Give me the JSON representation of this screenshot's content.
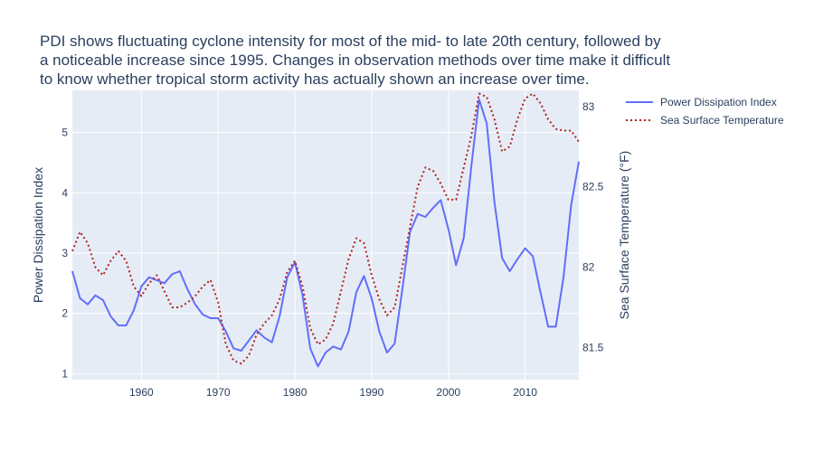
{
  "chart_data": {
    "type": "line",
    "title_lines": [
      "PDI shows fluctuating cyclone intensity for most of the mid- to late 20th century, followed by",
      "a noticeable increase since 1995. Changes in observation methods over time make it difficult",
      "to know whether tropical storm activity has actually shown an increase over time."
    ],
    "xlabel": "",
    "y_left_label": "Power Dissipation Index",
    "y_right_label": "Sea Surface Temperature (°F)",
    "xlim": [
      1951,
      2017
    ],
    "x_ticks": [
      1960,
      1970,
      1980,
      1990,
      2000,
      2010
    ],
    "y_left_lim": [
      0.9,
      5.7
    ],
    "y_left_ticks": [
      1,
      2,
      3,
      4,
      5
    ],
    "y_right_lim": [
      81.3,
      83.1
    ],
    "y_right_ticks": [
      81.5,
      82,
      82.5,
      83
    ],
    "grid": true,
    "legend_position": "top-right, outside plot",
    "background_color": "#e5ecf6",
    "series": [
      {
        "name": "Power Dissipation Index",
        "axis": "left",
        "color": "#636efa",
        "dash": "solid",
        "x": [
          1951,
          1952,
          1953,
          1954,
          1955,
          1956,
          1957,
          1958,
          1959,
          1960,
          1961,
          1962,
          1963,
          1964,
          1965,
          1966,
          1967,
          1968,
          1969,
          1970,
          1971,
          1972,
          1973,
          1974,
          1975,
          1976,
          1977,
          1978,
          1979,
          1980,
          1981,
          1982,
          1983,
          1984,
          1985,
          1986,
          1987,
          1988,
          1989,
          1990,
          1991,
          1992,
          1993,
          1994,
          1995,
          1996,
          1997,
          1998,
          1999,
          2000,
          2001,
          2002,
          2003,
          2004,
          2005,
          2006,
          2007,
          2008,
          2009,
          2010,
          2011,
          2012,
          2013,
          2014,
          2015,
          2016,
          2017
        ],
        "values": [
          2.7,
          2.25,
          2.15,
          2.3,
          2.22,
          1.95,
          1.8,
          1.8,
          2.05,
          2.45,
          2.6,
          2.55,
          2.5,
          2.65,
          2.7,
          2.4,
          2.15,
          1.98,
          1.92,
          1.92,
          1.7,
          1.42,
          1.38,
          1.55,
          1.72,
          1.6,
          1.52,
          1.95,
          2.6,
          2.85,
          2.3,
          1.42,
          1.12,
          1.35,
          1.45,
          1.4,
          1.7,
          2.35,
          2.62,
          2.25,
          1.7,
          1.35,
          1.5,
          2.4,
          3.35,
          3.65,
          3.6,
          3.75,
          3.88,
          3.4,
          2.8,
          3.25,
          4.45,
          5.55,
          5.15,
          3.85,
          2.92,
          2.7,
          2.9,
          3.08,
          2.95,
          2.35,
          1.78,
          1.78,
          2.6,
          3.8,
          4.52
        ]
      },
      {
        "name": "Sea Surface Temperature",
        "axis": "right",
        "color": "#b22222",
        "dash": "dot",
        "x": [
          1951,
          1952,
          1953,
          1954,
          1955,
          1956,
          1957,
          1958,
          1959,
          1960,
          1961,
          1962,
          1963,
          1964,
          1965,
          1966,
          1967,
          1968,
          1969,
          1970,
          1971,
          1972,
          1973,
          1974,
          1975,
          1976,
          1977,
          1978,
          1979,
          1980,
          1981,
          1982,
          1983,
          1984,
          1985,
          1986,
          1987,
          1988,
          1989,
          1990,
          1991,
          1992,
          1993,
          1994,
          1995,
          1996,
          1997,
          1998,
          1999,
          2000,
          2001,
          2002,
          2003,
          2004,
          2005,
          2006,
          2007,
          2008,
          2009,
          2010,
          2011,
          2012,
          2013,
          2014,
          2015,
          2016,
          2017
        ],
        "values": [
          82.1,
          82.22,
          82.15,
          82.0,
          81.95,
          82.04,
          82.1,
          82.04,
          81.88,
          81.82,
          81.9,
          81.95,
          81.85,
          81.75,
          81.75,
          81.78,
          81.82,
          81.88,
          81.92,
          81.78,
          81.52,
          81.42,
          81.4,
          81.45,
          81.58,
          81.65,
          81.7,
          81.8,
          81.97,
          82.04,
          81.88,
          81.62,
          81.52,
          81.55,
          81.65,
          81.85,
          82.05,
          82.18,
          82.15,
          81.95,
          81.8,
          81.7,
          81.75,
          82.0,
          82.25,
          82.5,
          82.62,
          82.6,
          82.52,
          82.42,
          82.42,
          82.62,
          82.82,
          83.08,
          83.06,
          82.92,
          82.72,
          82.75,
          82.92,
          83.05,
          83.08,
          83.02,
          82.92,
          82.86,
          82.85,
          82.85,
          82.78
        ]
      }
    ]
  }
}
